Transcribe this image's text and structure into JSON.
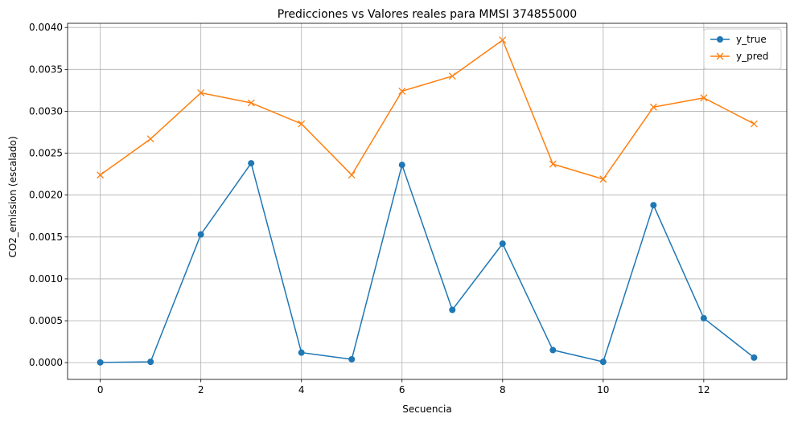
{
  "chart_data": {
    "type": "line",
    "title": "Predicciones vs Valores reales para MMSI 374855000",
    "xlabel": "Secuencia",
    "ylabel": "CO2_emission (escalado)",
    "x": [
      0,
      1,
      2,
      3,
      4,
      5,
      6,
      7,
      8,
      9,
      10,
      11,
      12,
      13
    ],
    "xlim": [
      -0.65,
      13.65
    ],
    "ylim": [
      -0.0002,
      0.00405
    ],
    "xticks": [
      "0",
      "2",
      "4",
      "6",
      "8",
      "10",
      "12"
    ],
    "yticks": [
      "0.0000",
      "0.0005",
      "0.0010",
      "0.0015",
      "0.0020",
      "0.0025",
      "0.0030",
      "0.0035",
      "0.0040"
    ],
    "grid": true,
    "legend_position": "top-right",
    "series": [
      {
        "name": "y_true",
        "color": "#1f77b4",
        "marker": "circle",
        "values": [
          3e-06,
          1e-05,
          0.00153,
          0.00238,
          0.00012,
          4e-05,
          0.00236,
          0.00063,
          0.00142,
          0.00015,
          1e-05,
          0.00188,
          0.00053,
          6e-05
        ]
      },
      {
        "name": "y_pred",
        "color": "#ff7f0e",
        "marker": "x",
        "values": [
          0.00224,
          0.00267,
          0.00322,
          0.0031,
          0.00285,
          0.00224,
          0.00324,
          0.00342,
          0.00385,
          0.00237,
          0.00219,
          0.00305,
          0.00316,
          0.00285
        ]
      }
    ]
  }
}
